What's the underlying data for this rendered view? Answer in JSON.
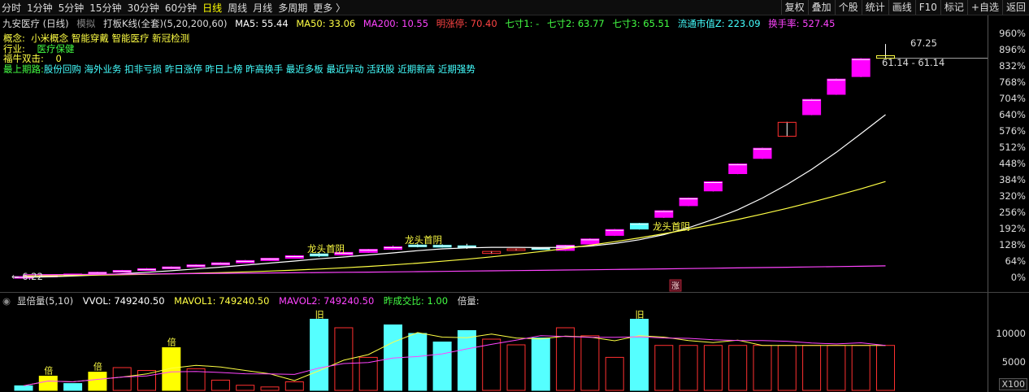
{
  "toolbar": {
    "periods": [
      "分时",
      "1分钟",
      "5分钟",
      "15分钟",
      "30分钟",
      "60分钟",
      "日线",
      "周线",
      "月线",
      "多周期",
      "更多 〉"
    ],
    "active_period": "日线",
    "tools": [
      "复权",
      "叠加",
      "个股",
      "统计",
      "画线",
      "F10",
      "标记",
      "+自选",
      "返回"
    ]
  },
  "legend": {
    "stock": "九安医疗 (日线)",
    "mode": "模拟",
    "indicator": "打板K线(全套)(5,20,200,60)",
    "ma5": "MA5: 55.44",
    "ma50": "MA50: 33.06",
    "ma200": "MA200: 10.55",
    "limit_up": "明涨停: 70.40",
    "qc1": "七寸1: -",
    "qc2": "七寸2: 63.77",
    "qc3": "七寸3: 65.51",
    "mktcap": "流通市值Z: 223.09",
    "turnover": "换手率: 527.45"
  },
  "info": {
    "concept_label": "概念:",
    "concept_value": "小米概念 智能穿戴 智能医疗 新冠检测",
    "industry_label": "行业:",
    "industry_value": "医疗保健",
    "fuliu_label": "福牛双击:",
    "fuliu_value": "0",
    "tags_label": "最上期路:",
    "tags": "股份回购 海外业务 扣非亏损 昨日涨停 昨日上榜 昨高换手 最近多板 最近异动 活跃股 近期新高 近期强势"
  },
  "annotations": {
    "dragon1": "龙头首阴",
    "dragon2": "龙头首阴",
    "dragon3": "龙头首阴",
    "high_price": "67.25",
    "last_range": "61.14 - 61.14",
    "low_price": "6.22",
    "zhang": "涨"
  },
  "y_axis_ticks": [
    "960%",
    "896%",
    "832%",
    "768%",
    "704%",
    "640%",
    "576%",
    "512%",
    "448%",
    "384%",
    "320%",
    "256%",
    "192%",
    "128%",
    "64%",
    "0%"
  ],
  "sub": {
    "title": "显倍量(5,10)",
    "vvol": "VVOL: 749240.50",
    "mavol1": "MAVOL1: 749240.50",
    "mavol2": "MAVOL2: 749240.50",
    "ratio": "昨成交比: 1.00",
    "bei": "倍量:",
    "ticks": [
      "10000",
      "5000"
    ],
    "badge": "X100",
    "bei_label": "倍",
    "jiu_label": "旧"
  },
  "colors": {
    "up": "#ff00ff",
    "down": "#55ffff",
    "ma5": "#ffffff",
    "ma50": "#ffff44",
    "ma200": "#ff44ff",
    "vol_red": "#ff3030",
    "vol_cyan": "#55ffff",
    "vol_yellow": "#ffff00"
  },
  "chart_data": {
    "type": "candlestick",
    "x": [
      1,
      2,
      3,
      4,
      5,
      6,
      7,
      8,
      9,
      10,
      11,
      12,
      13,
      14,
      15,
      16,
      17,
      18,
      19,
      20,
      21,
      22,
      23,
      24,
      25,
      26,
      27,
      28,
      29,
      30,
      31,
      32,
      33,
      34,
      35,
      36
    ],
    "candles": [
      {
        "o": 0,
        "c": 3,
        "h": 4,
        "l": -1,
        "t": "up"
      },
      {
        "o": 3,
        "c": 8,
        "h": 9,
        "l": 2,
        "t": "up"
      },
      {
        "o": 8,
        "c": 13,
        "h": 14,
        "l": 7,
        "t": "up"
      },
      {
        "o": 13,
        "c": 20,
        "h": 22,
        "l": 12,
        "t": "up"
      },
      {
        "o": 20,
        "c": 27,
        "h": 29,
        "l": 19,
        "t": "up"
      },
      {
        "o": 27,
        "c": 34,
        "h": 36,
        "l": 26,
        "t": "up"
      },
      {
        "o": 34,
        "c": 41,
        "h": 43,
        "l": 33,
        "t": "up"
      },
      {
        "o": 41,
        "c": 49,
        "h": 51,
        "l": 40,
        "t": "up"
      },
      {
        "o": 49,
        "c": 57,
        "h": 59,
        "l": 48,
        "t": "up"
      },
      {
        "o": 57,
        "c": 66,
        "h": 68,
        "l": 56,
        "t": "up"
      },
      {
        "o": 66,
        "c": 75,
        "h": 77,
        "l": 65,
        "t": "up"
      },
      {
        "o": 75,
        "c": 85,
        "h": 87,
        "l": 74,
        "t": "up"
      },
      {
        "o": 92,
        "c": 84,
        "h": 98,
        "l": 80,
        "t": "down"
      },
      {
        "o": 88,
        "c": 98,
        "h": 100,
        "l": 86,
        "t": "up"
      },
      {
        "o": 98,
        "c": 110,
        "h": 112,
        "l": 96,
        "t": "up"
      },
      {
        "o": 110,
        "c": 120,
        "h": 124,
        "l": 108,
        "t": "up"
      },
      {
        "o": 127,
        "c": 121,
        "h": 133,
        "l": 118,
        "t": "down"
      },
      {
        "o": 126,
        "c": 119,
        "h": 130,
        "l": 117,
        "t": "down"
      },
      {
        "o": 124,
        "c": 117,
        "h": 132,
        "l": 112,
        "t": "down"
      },
      {
        "o": 102,
        "c": 94,
        "h": 104,
        "l": 92,
        "t": "hollow"
      },
      {
        "o": 112,
        "c": 107,
        "h": 114,
        "l": 105,
        "t": "hollow"
      },
      {
        "o": 112,
        "c": 116,
        "h": 118,
        "l": 110,
        "t": "down"
      },
      {
        "o": 106,
        "c": 126,
        "h": 128,
        "l": 104,
        "t": "up"
      },
      {
        "o": 131,
        "c": 151,
        "h": 153,
        "l": 129,
        "t": "up"
      },
      {
        "o": 165,
        "c": 188,
        "h": 190,
        "l": 163,
        "t": "up"
      },
      {
        "o": 190,
        "c": 212,
        "h": 214,
        "l": 188,
        "t": "down"
      },
      {
        "o": 236,
        "c": 262,
        "h": 264,
        "l": 234,
        "t": "up"
      },
      {
        "o": 282,
        "c": 312,
        "h": 314,
        "l": 280,
        "t": "up"
      },
      {
        "o": 340,
        "c": 376,
        "h": 378,
        "l": 338,
        "t": "up"
      },
      {
        "o": 408,
        "c": 446,
        "h": 448,
        "l": 406,
        "t": "up"
      },
      {
        "o": 468,
        "c": 508,
        "h": 510,
        "l": 466,
        "t": "up"
      },
      {
        "o": 555,
        "c": 610,
        "h": 612,
        "l": 553,
        "t": "hollow"
      },
      {
        "o": 640,
        "c": 700,
        "h": 702,
        "l": 638,
        "t": "up"
      },
      {
        "o": 720,
        "c": 780,
        "h": 782,
        "l": 718,
        "t": "up"
      },
      {
        "o": 790,
        "c": 860,
        "h": 862,
        "l": 788,
        "t": "up"
      },
      {
        "o": 862,
        "c": 872,
        "h": 918,
        "l": 862,
        "t": "hollow_yellow"
      }
    ],
    "volume": [
      {
        "v": 800,
        "c": "cyan"
      },
      {
        "v": 2500,
        "c": "yellow"
      },
      {
        "v": 1200,
        "c": "cyan"
      },
      {
        "v": 3200,
        "c": "yellow"
      },
      {
        "v": 4000,
        "c": "red"
      },
      {
        "v": 3500,
        "c": "red"
      },
      {
        "v": 7500,
        "c": "yellow"
      },
      {
        "v": 3800,
        "c": "red"
      },
      {
        "v": 1800,
        "c": "red"
      },
      {
        "v": 900,
        "c": "red"
      },
      {
        "v": 600,
        "c": "red"
      },
      {
        "v": 1500,
        "c": "red"
      },
      {
        "v": 12500,
        "c": "cyan"
      },
      {
        "v": 11000,
        "c": "red"
      },
      {
        "v": 5800,
        "c": "red"
      },
      {
        "v": 11500,
        "c": "cyan"
      },
      {
        "v": 10000,
        "c": "cyan"
      },
      {
        "v": 8500,
        "c": "cyan"
      },
      {
        "v": 10500,
        "c": "cyan"
      },
      {
        "v": 9000,
        "c": "red"
      },
      {
        "v": 8000,
        "c": "red"
      },
      {
        "v": 9200,
        "c": "cyan"
      },
      {
        "v": 11000,
        "c": "red"
      },
      {
        "v": 9600,
        "c": "red"
      },
      {
        "v": 5800,
        "c": "red"
      },
      {
        "v": 12500,
        "c": "cyan"
      },
      {
        "v": 7900,
        "c": "red"
      },
      {
        "v": 7900,
        "c": "red"
      },
      {
        "v": 7900,
        "c": "red"
      },
      {
        "v": 7900,
        "c": "red"
      },
      {
        "v": 7900,
        "c": "red"
      },
      {
        "v": 7900,
        "c": "red"
      },
      {
        "v": 7900,
        "c": "red"
      },
      {
        "v": 7900,
        "c": "red"
      },
      {
        "v": 7900,
        "c": "red"
      },
      {
        "v": 7900,
        "c": "red"
      }
    ],
    "ylim": [
      -20,
      1000
    ],
    "vol_ylim": [
      0,
      14000
    ]
  }
}
